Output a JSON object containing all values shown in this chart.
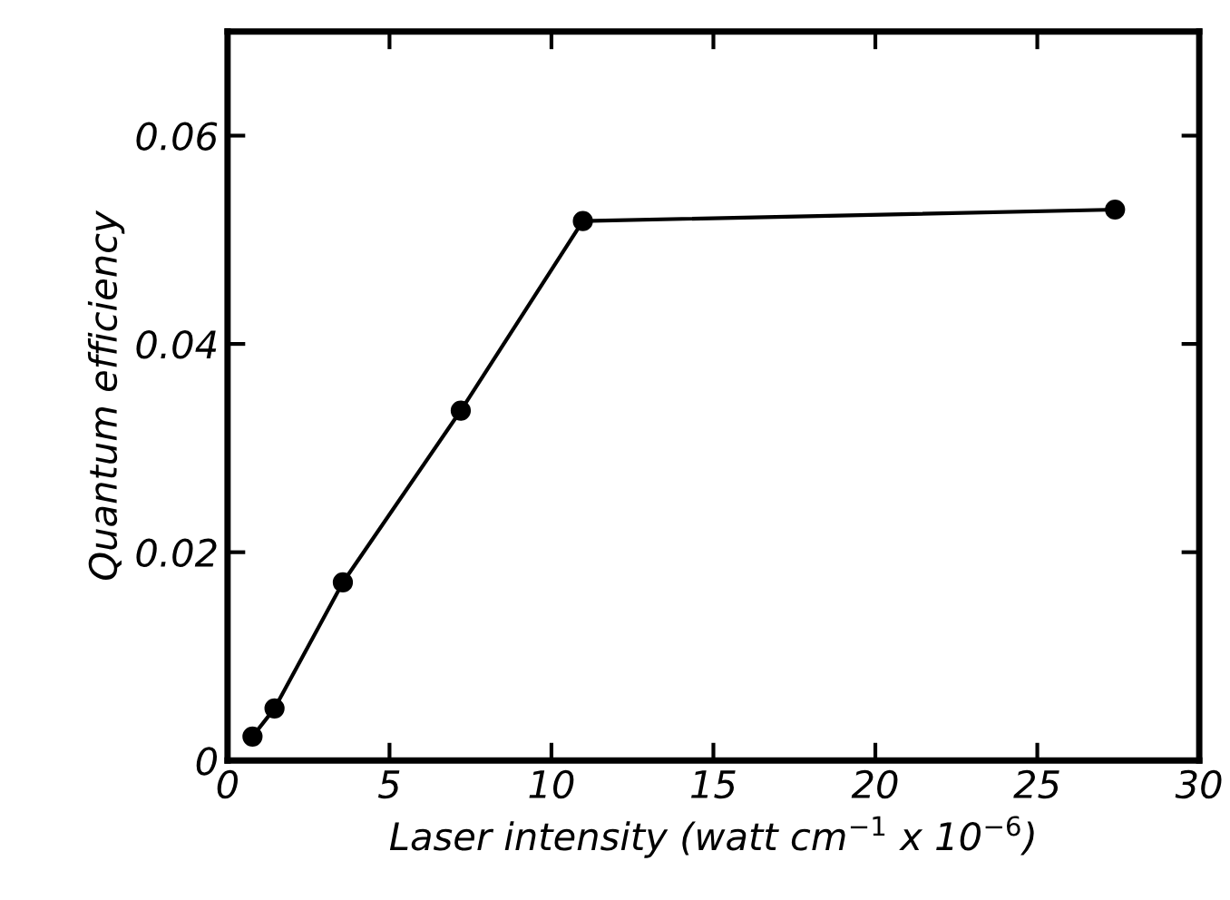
{
  "chart_data": {
    "type": "line",
    "xlabel": "Laser intensity (watt cm$^{−1}$ x 10$^{−6}$)",
    "ylabel": "Quantum efficiency",
    "x": [
      0.77,
      1.45,
      3.56,
      7.2,
      10.97,
      27.4
    ],
    "series": [
      {
        "color": "#000000",
        "values": [
          0.0023,
          0.005,
          0.0171,
          0.0336,
          0.0518,
          0.0529
        ]
      }
    ],
    "xlim": [
      0,
      30
    ],
    "xticks": [
      0,
      5,
      10,
      15,
      20,
      25,
      30
    ],
    "ylim": [
      0,
      0.07
    ],
    "yticks": [
      0,
      0.02,
      0.04,
      0.06
    ],
    "marker": "circle",
    "line_style": "solid",
    "grid": false,
    "legend": false
  }
}
